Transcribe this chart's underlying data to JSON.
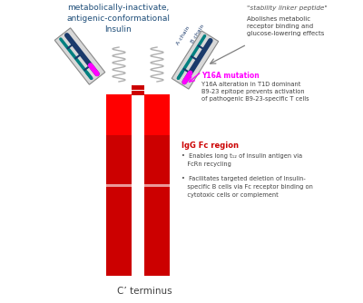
{
  "bg_color": "#ffffff",
  "title_text": "metabolically-inactivate,\nantigenic-conformational\nInsulin",
  "title_color": "#1f4e79",
  "stability_label": "\"stability linker peptide\"",
  "stability_text": "Abolishes metabolic\nreceptor binding and\nglucose-lowering effects",
  "stability_color": "#404040",
  "y16a_label": "Y16A mutation",
  "y16a_text": "Y16A alteration in T1D dominant\nB9-23 epitope prevents activation\nof pathogenic B9-23-specific T cells",
  "y16a_label_color": "#ff00ff",
  "y16a_text_color": "#404040",
  "igG_label": "IgG Fc region",
  "igG_label_color": "#cc0000",
  "igG_text_color": "#404040",
  "c_terminus": "C’ terminus",
  "c_terminus_color": "#404040",
  "red_dark": "#cc0000",
  "red_bright": "#ff0000",
  "dark_blue": "#1a3a6b",
  "teal": "#008080",
  "magenta": "#ff00ff",
  "gray": "#a0a0a0",
  "light_gray": "#d8d8d8"
}
